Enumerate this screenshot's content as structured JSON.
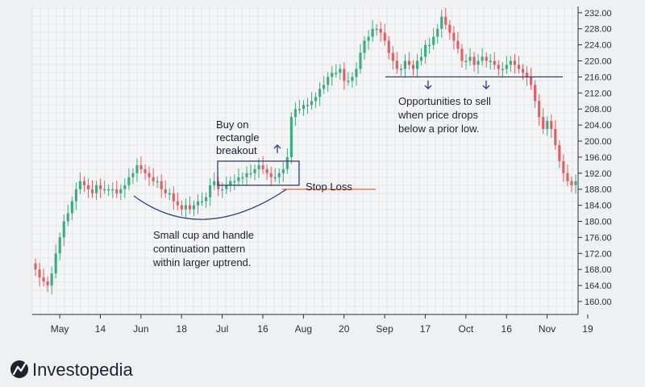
{
  "brand": {
    "name": "Investopedia"
  },
  "colors": {
    "up": "#3cac80",
    "down": "#e45d62",
    "line": "#2e3d83",
    "stop": "#e07a5f",
    "grid": "#d4d7db"
  },
  "chart_data": {
    "type": "candlestick",
    "title": "",
    "xlabel": "",
    "ylabel": "",
    "ylim": [
      156,
      234
    ],
    "grid": true,
    "y_ticks": [
      "160.00",
      "164.00",
      "168.00",
      "172.00",
      "176.00",
      "180.00",
      "184.00",
      "188.00",
      "192.00",
      "196.00",
      "200.00",
      "204.00",
      "208.00",
      "212.00",
      "216.00",
      "220.00",
      "224.00",
      "228.00",
      "232.00"
    ],
    "x_ticks": [
      {
        "label": "May",
        "i": 2
      },
      {
        "label": "14",
        "i": 12
      },
      {
        "label": "Jun",
        "i": 22
      },
      {
        "label": "18",
        "i": 32
      },
      {
        "label": "Jul",
        "i": 42
      },
      {
        "label": "16",
        "i": 52
      },
      {
        "label": "Aug",
        "i": 62
      },
      {
        "label": "20",
        "i": 72
      },
      {
        "label": "Sep",
        "i": 82
      },
      {
        "label": "17",
        "i": 92
      },
      {
        "label": "Oct",
        "i": 102
      },
      {
        "label": "16",
        "i": 112
      },
      {
        "label": "Nov",
        "i": 122
      },
      {
        "label": "19",
        "i": 132
      }
    ],
    "closes": [
      168,
      166,
      165,
      164,
      167,
      172,
      176,
      180,
      182,
      185,
      188,
      190,
      189,
      188,
      187,
      189,
      188,
      188,
      188,
      188,
      187,
      188,
      189,
      191,
      192,
      194,
      193,
      192,
      191,
      190,
      190,
      188,
      187,
      187,
      185,
      184,
      183,
      184,
      183,
      184,
      185,
      185,
      186,
      189,
      190,
      188,
      188,
      189,
      190,
      190,
      191,
      191,
      192,
      192,
      193,
      194,
      193,
      192,
      191,
      191,
      192,
      193,
      196,
      206,
      208,
      208,
      209,
      209,
      210,
      211,
      213,
      214,
      216,
      217,
      217,
      218,
      215,
      215,
      216,
      218,
      222,
      225,
      226,
      228,
      228,
      227,
      225,
      222,
      220,
      218,
      218,
      220,
      219,
      218,
      220,
      221,
      224,
      224,
      226,
      228,
      231,
      229,
      227,
      225,
      223,
      220,
      220,
      221,
      219,
      220,
      221,
      220,
      220,
      219,
      218,
      218,
      219,
      220,
      219,
      218,
      217,
      216,
      214,
      210,
      206,
      203,
      205,
      203,
      199,
      195,
      192,
      190,
      189,
      190
    ],
    "annotations": {
      "buy": [
        "Buy on",
        "rectangle",
        "breakout"
      ],
      "stop_loss": "Stop Loss",
      "cup": [
        "Small cup and handle",
        "continuation pattern",
        "within larger uptrend."
      ],
      "sell": [
        "Opportunities to sell",
        "when price drops",
        "below a prior low."
      ]
    },
    "levels": {
      "stop": 188,
      "resistance": 216,
      "rect": [
        189,
        195
      ]
    }
  }
}
